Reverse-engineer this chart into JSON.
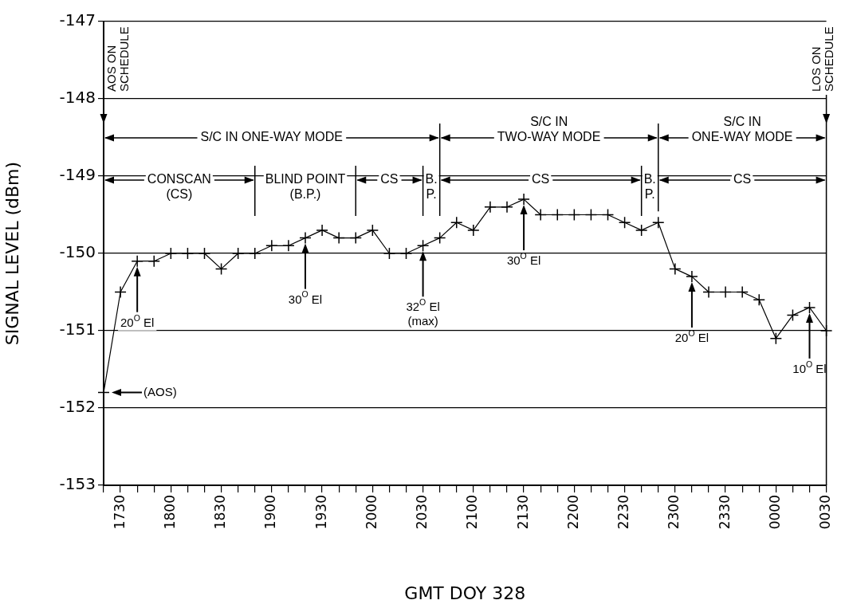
{
  "chart_data": {
    "type": "line",
    "xlabel": "GMT DOY 328",
    "ylabel": "SIGNAL LEVEL (dBm)",
    "categories": [
      null,
      "1730",
      null,
      null,
      "1800",
      null,
      null,
      "1830",
      null,
      null,
      "1900",
      null,
      null,
      "1930",
      null,
      null,
      "2000",
      null,
      null,
      "2030",
      null,
      null,
      "2100",
      null,
      null,
      "2130",
      null,
      null,
      "2200",
      null,
      null,
      "2230",
      null,
      null,
      "2300",
      null,
      null,
      "2330",
      null,
      null,
      "0000",
      null,
      null,
      "0030"
    ],
    "series": [
      {
        "color": "#000000",
        "values": [
          -151.8,
          -150.5,
          -150.1,
          -150.1,
          -150,
          -150,
          -150,
          -150.2,
          -150,
          -150,
          -149.9,
          -149.9,
          -149.8,
          -149.7,
          -149.8,
          -149.8,
          -149.7,
          -150,
          -150,
          -149.9,
          -149.8,
          -149.6,
          -149.7,
          -149.4,
          -149.4,
          -149.3,
          -149.5,
          -149.5,
          -149.5,
          -149.5,
          -149.5,
          -149.6,
          -149.7,
          -149.6,
          -150.2,
          -150.3,
          -150.5,
          -150.5,
          -150.5,
          -150.6,
          -151.1,
          -150.8,
          -150.7,
          -151.0
        ]
      }
    ],
    "marker": "cross",
    "line_style": "solid",
    "grid": "y",
    "legend": false,
    "ylim": [
      -153,
      -147
    ],
    "yticks": [
      -153,
      -152,
      -151,
      -150,
      -149,
      -148,
      -147
    ],
    "annotations": [
      "S/C IN ONE-WAY MODE",
      "S/C IN\nTWO-WAY MODE",
      "S/C IN\nONE-WAY MODE",
      "CONSCAN\n(CS)",
      "BLIND POINT\n(B.P.)",
      "CS",
      "B.\nP.",
      "CS",
      "B.\nP.",
      "CS",
      "AOS ON\nSCHEDULE",
      "LOS ON\nSCHEDULE",
      "(AOS)",
      "20$^{O}$ El",
      "30$^{O}$ El",
      "32$^{O}$ El\n(max)",
      "30$^{O}$ El",
      "20$^{O}$ El",
      "10$^{O}$ El"
    ]
  }
}
